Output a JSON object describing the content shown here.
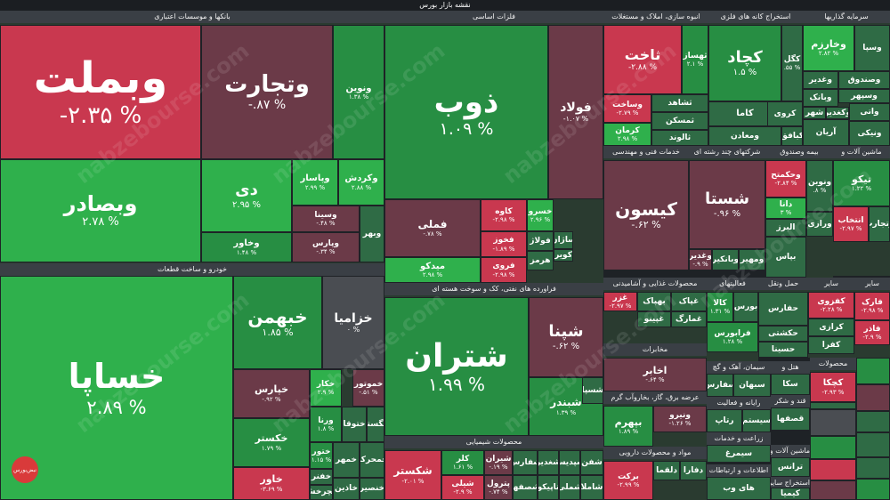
{
  "title": "نقشه بازار بورس",
  "watermark": "nabzebourse.com",
  "logo_text": "نبض‌بورس",
  "colors": {
    "strong_up": "#2fb04c",
    "up": "#278e43",
    "mild_up": "#2f6b45",
    "neutral": "#4a4d52",
    "mild_down": "#6b3a48",
    "down": "#c9384f",
    "section_label": "#3a3f45"
  },
  "chart_data": {
    "type": "treemap",
    "title": "نقشه بازار بورس",
    "sectors": [
      {
        "name": "بانکها و موسسات اعتباری",
        "stocks": [
          {
            "name": "وبملت",
            "change": -2.35
          },
          {
            "name": "وتجارت",
            "change": -0.87
          },
          {
            "name": "ونوین",
            "change": 1.38
          },
          {
            "name": "وبصادر",
            "change": 2.78
          },
          {
            "name": "دی",
            "change": 2.95
          },
          {
            "name": "وپاسار",
            "change": 2.99
          },
          {
            "name": "وکردش",
            "change": 2.88
          },
          {
            "name": "وسینا",
            "change": -0.48
          },
          {
            "name": "وخاور",
            "change": 1.48
          },
          {
            "name": "وپارس",
            "change": -0.34
          },
          {
            "name": "وبهر",
            "change": null
          }
        ]
      },
      {
        "name": "خودرو و ساخت قطعات",
        "stocks": [
          {
            "name": "خساپا",
            "change": 2.89
          },
          {
            "name": "خبهمن",
            "change": 1.85
          },
          {
            "name": "خزامیا",
            "change": 0
          },
          {
            "name": "خپارس",
            "change": -0.92
          },
          {
            "name": "خکستر",
            "change": 1.79
          },
          {
            "name": "خاور",
            "change": -3.69
          },
          {
            "name": "خکار",
            "change": 2.9
          },
          {
            "name": "خموتور",
            "change": -0.51
          },
          {
            "name": "ورنا",
            "change": 1.8
          },
          {
            "name": "ختوقا",
            "change": null
          },
          {
            "name": "خگستر",
            "change": null
          },
          {
            "name": "ختور",
            "change": 1.15
          },
          {
            "name": "خفنر",
            "change": null
          },
          {
            "name": "خچرخش",
            "change": null
          },
          {
            "name": "خمهر",
            "change": null
          },
          {
            "name": "خاذین",
            "change": null
          },
          {
            "name": "خمحرکه",
            "change": null
          },
          {
            "name": "خنصیر",
            "change": null
          }
        ]
      },
      {
        "name": "فلزات اساسی",
        "stocks": [
          {
            "name": "ذوب",
            "change": 1.09
          },
          {
            "name": "فولاد",
            "change": -1.07
          },
          {
            "name": "فملی",
            "change": -0.78
          },
          {
            "name": "کاوه",
            "change": -2.98
          },
          {
            "name": "خسرو",
            "change": 2.96
          },
          {
            "name": "فخوز",
            "change": -1.89
          },
          {
            "name": "فولاژ",
            "change": null
          },
          {
            "name": "فروی",
            "change": -2.98
          },
          {
            "name": "ساژان",
            "change": null
          },
          {
            "name": "کویر",
            "change": null
          },
          {
            "name": "هرمز",
            "change": null
          },
          {
            "name": "میدکو",
            "change": 2.98
          }
        ]
      },
      {
        "name": "فراورده های نفتی، کک و سوخت هسته ای",
        "stocks": [
          {
            "name": "شتران",
            "change": 1.99
          },
          {
            "name": "شپنا",
            "change": -0.62
          },
          {
            "name": "شبندر",
            "change": 1.39
          },
          {
            "name": "شسپا",
            "change": null
          }
        ]
      },
      {
        "name": "محصولات شیمیایی",
        "stocks": [
          {
            "name": "شکستر",
            "change": -2.01
          },
          {
            "name": "کلر",
            "change": 1.61
          },
          {
            "name": "شیران",
            "change": -0.19
          },
          {
            "name": "شیلی",
            "change": -2.9
          },
          {
            "name": "پترول",
            "change": -0.74
          },
          {
            "name": "شفارس",
            "change": null
          },
          {
            "name": "شصفها",
            "change": null
          },
          {
            "name": "شغدیر",
            "change": null
          },
          {
            "name": "تاپیکو",
            "change": null
          },
          {
            "name": "شپدیس",
            "change": null
          },
          {
            "name": "شفن",
            "change": null
          },
          {
            "name": "شملی",
            "change": null
          },
          {
            "name": "شاملا",
            "change": null
          }
        ]
      },
      {
        "name": "انبوه سازی، املاک و مستغلات",
        "stocks": [
          {
            "name": "ثاخت",
            "change": -2.88
          },
          {
            "name": "ثهساز",
            "change": 2.1
          },
          {
            "name": "وساخت",
            "change": -2.79
          },
          {
            "name": "ثشاهد",
            "change": null
          },
          {
            "name": "کرمان",
            "change": 2.98
          },
          {
            "name": "ثمسکن",
            "change": null
          },
          {
            "name": "ثالوند",
            "change": null
          }
        ]
      },
      {
        "name": "استخراج کانه های فلزی",
        "stocks": [
          {
            "name": "کچاد",
            "change": 1.5
          },
          {
            "name": "کگل",
            "change": 0.55
          },
          {
            "name": "کاما",
            "change": null
          },
          {
            "name": "ومعادن",
            "change": null
          },
          {
            "name": "کروی",
            "change": null
          },
          {
            "name": "کبافق",
            "change": null
          },
          {
            "name": "کنور",
            "change": null
          }
        ]
      },
      {
        "name": "سرمایه گذاریها",
        "stocks": [
          {
            "name": "وخارزم",
            "change": 2.82
          },
          {
            "name": "وسپا",
            "change": null
          },
          {
            "name": "وغدیر",
            "change": null
          },
          {
            "name": "وبانک",
            "change": null
          },
          {
            "name": "وصندوق",
            "change": null
          },
          {
            "name": "وسپهر",
            "change": null
          },
          {
            "name": "شهر",
            "change": null
          },
          {
            "name": "وکغدیر",
            "change": null
          },
          {
            "name": "واتی",
            "change": null
          },
          {
            "name": "آریان",
            "change": null
          },
          {
            "name": "ونیکی",
            "change": null
          }
        ]
      },
      {
        "name": "خدمات فنی و مهندسی",
        "stocks": [
          {
            "name": "کیسون",
            "change": -0.62
          }
        ]
      },
      {
        "name": "شرکتهای چند رشته ای",
        "stocks": [
          {
            "name": "شستا",
            "change": -0.96
          },
          {
            "name": "وغدیر",
            "change": -0.9
          },
          {
            "name": "وبانکیر",
            "change": null
          },
          {
            "name": "ومهیر",
            "change": null
          },
          {
            "name": "وصنعت",
            "change": null
          }
        ]
      },
      {
        "name": "بیمه وصندوق",
        "stocks": [
          {
            "name": "وحکمتح",
            "change": -2.84
          },
          {
            "name": "ونوین",
            "change": 0.8
          },
          {
            "name": "دانا",
            "change": 3
          },
          {
            "name": "البرز",
            "change": null
          },
          {
            "name": "ورازی",
            "change": null
          },
          {
            "name": "بپاس",
            "change": null
          }
        ]
      },
      {
        "name": "ماشین آلات و",
        "stocks": [
          {
            "name": "تیکو",
            "change": 1.22
          },
          {
            "name": "انتخاب",
            "change": -2.97
          },
          {
            "name": "وتجارت",
            "change": null
          }
        ]
      },
      {
        "name": "محصولات غذایی و آشامیدنی",
        "stocks": [
          {
            "name": "غزر",
            "change": -2.97
          },
          {
            "name": "بهپاک",
            "change": null
          },
          {
            "name": "غپاک",
            "change": null
          },
          {
            "name": "غپینو",
            "change": null
          },
          {
            "name": "غمارگ",
            "change": null
          }
        ]
      },
      {
        "name": "فعالیتهای",
        "stocks": [
          {
            "name": "کالا",
            "change": 1.31
          },
          {
            "name": "فرابورس",
            "change": 1.28
          },
          {
            "name": "بورس",
            "change": null
          }
        ]
      },
      {
        "name": "حمل ونقل",
        "stocks": [
          {
            "name": "حفارس",
            "change": null
          },
          {
            "name": "حکشتی",
            "change": null
          },
          {
            "name": "حسینا",
            "change": null
          }
        ]
      },
      {
        "name": "سایر",
        "stocks": [
          {
            "name": "کفزوی",
            "change": -2.28
          },
          {
            "name": "کرازی",
            "change": null
          },
          {
            "name": "کفرا",
            "change": null
          }
        ]
      },
      {
        "name": "سایر",
        "stocks": [
          {
            "name": "فارک",
            "change": -2.98
          },
          {
            "name": "فاذر",
            "change": -2.9
          }
        ]
      },
      {
        "name": "مخابرات",
        "stocks": [
          {
            "name": "اخابر",
            "change": -0.64
          }
        ]
      },
      {
        "name": "عرضه برق، گاز، بخاروآب گرم",
        "stocks": [
          {
            "name": "بپهرم",
            "change": 1.89
          },
          {
            "name": "ونیرو",
            "change": -1.26
          }
        ]
      },
      {
        "name": "مواد و محصولات دارویی",
        "stocks": [
          {
            "name": "برکت",
            "change": -2.99
          },
          {
            "name": "دلقما",
            "change": null
          },
          {
            "name": "دفارا",
            "change": null
          }
        ]
      },
      {
        "name": "سیمان، آهک و گچ",
        "stocks": [
          {
            "name": "سفارس",
            "change": null
          },
          {
            "name": "سبهان",
            "change": null
          },
          {
            "name": "اباد",
            "change": null
          }
        ]
      },
      {
        "name": "هتل و",
        "stocks": [
          {
            "name": "سکا",
            "change": null
          }
        ]
      },
      {
        "name": "محصولات",
        "stocks": [
          {
            "name": "کچکا",
            "change": -2.93
          },
          {
            "name": "کسرام",
            "change": null
          }
        ]
      },
      {
        "name": "رایانه و فعالیت",
        "stocks": [
          {
            "name": "رتاپ",
            "change": null
          },
          {
            "name": "سیستم",
            "change": null
          }
        ]
      },
      {
        "name": "قند و شکر",
        "stocks": [
          {
            "name": "قصفها",
            "change": null
          }
        ]
      },
      {
        "name": "زراعت و خدمات",
        "stocks": [
          {
            "name": "سیمرغ",
            "change": null
          }
        ]
      },
      {
        "name": "ماشین آلات و",
        "stocks": [
          {
            "name": "ترانس",
            "change": null
          }
        ]
      },
      {
        "name": "اطلاعات و ارتباطات",
        "stocks": [
          {
            "name": "های وب",
            "change": null
          }
        ]
      },
      {
        "name": "استخراج سایر",
        "stocks": [
          {
            "name": "کیمیا",
            "change": null
          }
        ]
      }
    ]
  }
}
